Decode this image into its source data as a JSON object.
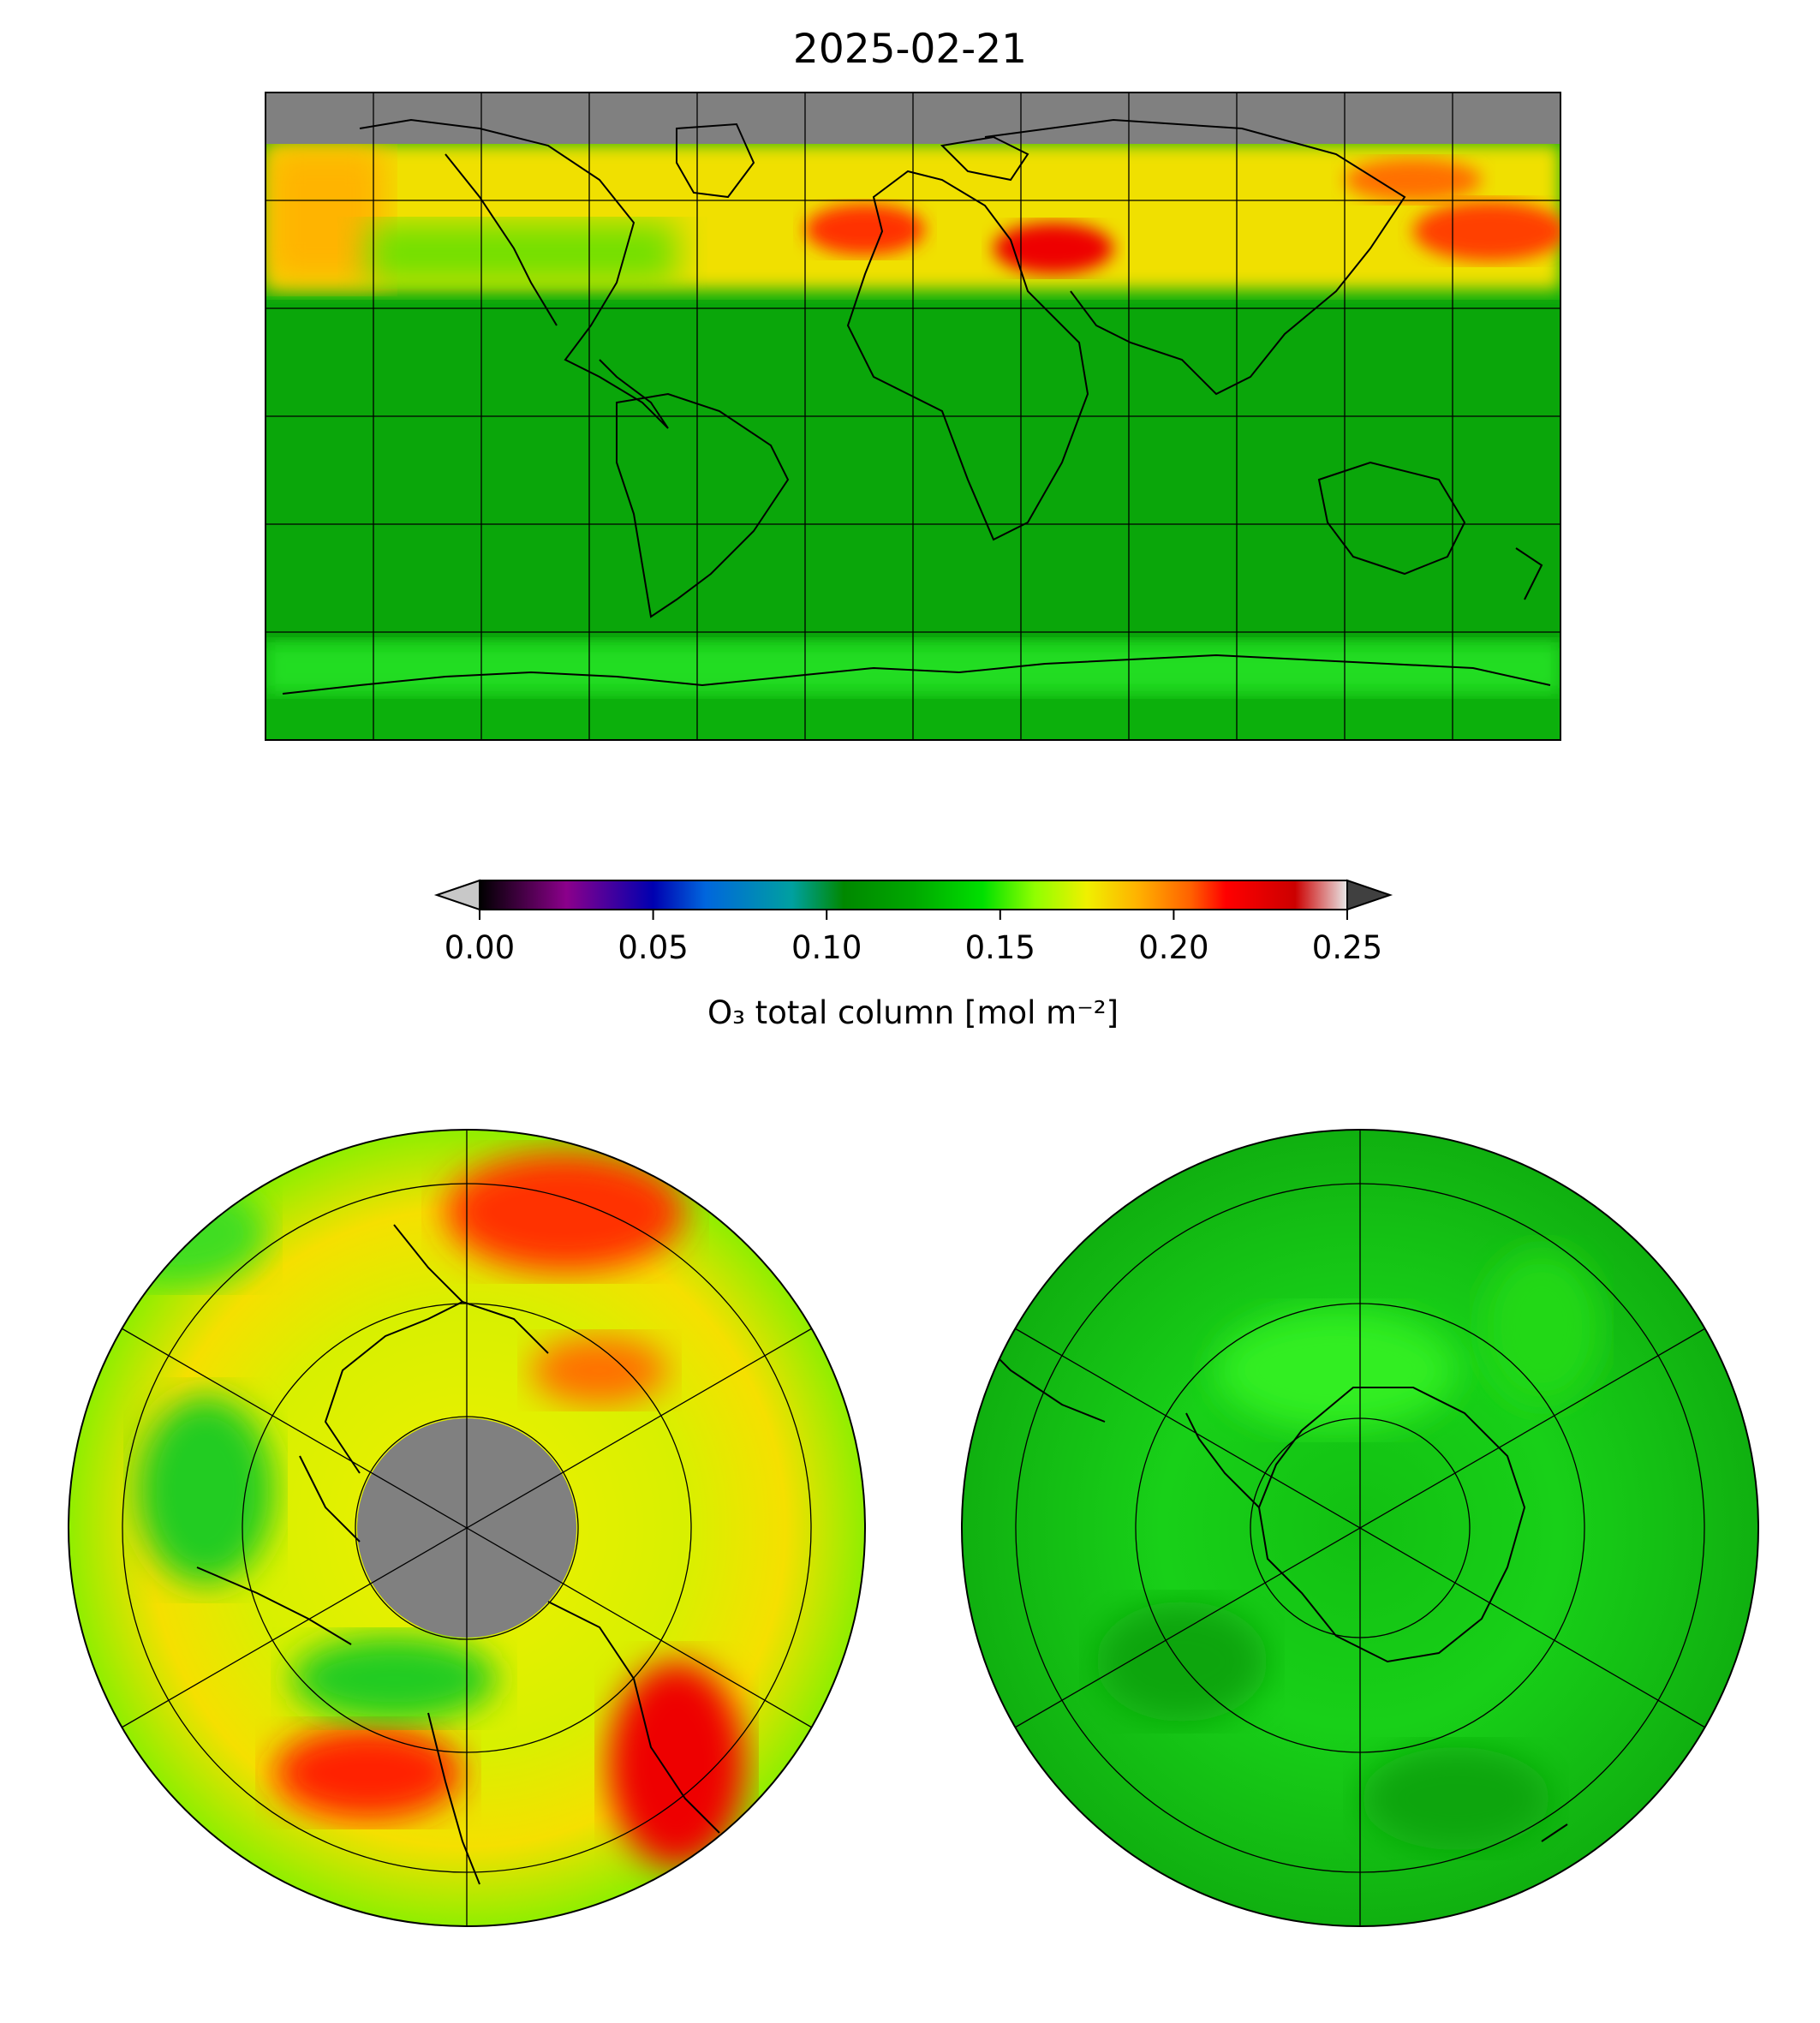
{
  "title": "2025-02-21",
  "colorbar": {
    "label": "O₃ total column [mol m⁻²]",
    "ticks": [
      "0.00",
      "0.05",
      "0.10",
      "0.15",
      "0.20",
      "0.25"
    ],
    "tick_values": [
      0.0,
      0.05,
      0.1,
      0.15,
      0.2,
      0.25
    ],
    "range": [
      0.0,
      0.25
    ],
    "extend": "both",
    "under_color": "#c8c8c8",
    "over_color": "#404040",
    "colormap_stops": [
      {
        "v": 0.0,
        "c": "#000000"
      },
      {
        "v": 0.025,
        "c": "#8b008b"
      },
      {
        "v": 0.05,
        "c": "#0000b0"
      },
      {
        "v": 0.065,
        "c": "#0066dd"
      },
      {
        "v": 0.09,
        "c": "#00a0a0"
      },
      {
        "v": 0.105,
        "c": "#008800"
      },
      {
        "v": 0.125,
        "c": "#00a800"
      },
      {
        "v": 0.145,
        "c": "#00e000"
      },
      {
        "v": 0.16,
        "c": "#90ff00"
      },
      {
        "v": 0.175,
        "c": "#f0f000"
      },
      {
        "v": 0.19,
        "c": "#ffb000"
      },
      {
        "v": 0.205,
        "c": "#ff6000"
      },
      {
        "v": 0.215,
        "c": "#ff0000"
      },
      {
        "v": 0.235,
        "c": "#cc0000"
      },
      {
        "v": 0.25,
        "c": "#e8e8e8"
      }
    ]
  },
  "maps": {
    "global": {
      "projection": "plate-carree",
      "gridlines": true,
      "coastlines": true,
      "missing_color": "#808080"
    },
    "north_polar": {
      "projection": "north-polar-stereographic",
      "gridlines": true,
      "coastlines": true,
      "missing_color": "#808080"
    },
    "south_polar": {
      "projection": "south-polar-stereographic",
      "gridlines": true,
      "coastlines": true
    }
  }
}
